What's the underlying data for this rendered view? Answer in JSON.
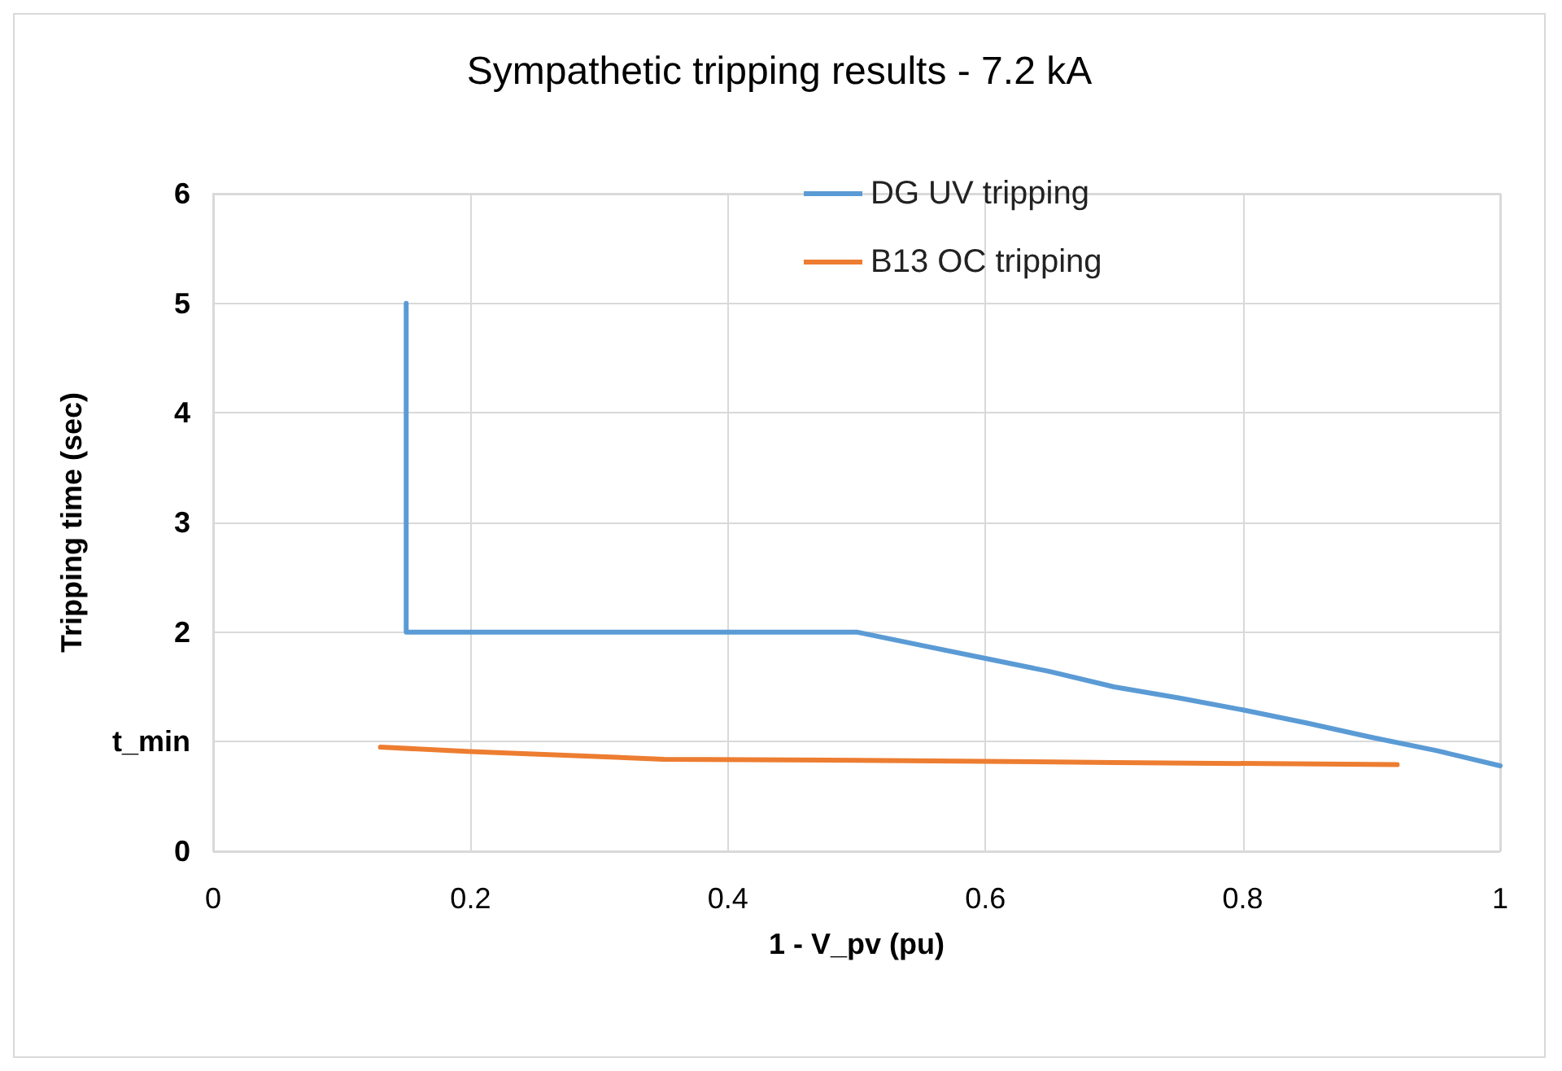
{
  "chart_data": {
    "type": "line",
    "title": "Sympathetic tripping results - 7.2 kA",
    "xlabel": "1 - V_pv (pu)",
    "ylabel": "Tripping time (sec)",
    "xlim": [
      0,
      1
    ],
    "xticks": [
      0,
      0.2,
      0.4,
      0.6,
      0.8,
      1
    ],
    "ylim": [
      0,
      6
    ],
    "yticks": [
      0,
      {
        "value": 1,
        "label": "t_min"
      },
      2,
      3,
      4,
      5,
      6
    ],
    "grid": true,
    "legend": "top",
    "marker": "none",
    "line_style": "solid",
    "series": [
      {
        "name": "DG UV tripping",
        "color": "#5b9bd5",
        "x": [
          0.15,
          0.15,
          0.5,
          0.55,
          0.6,
          0.65,
          0.7,
          0.75,
          0.8,
          0.85,
          0.9,
          0.95,
          1
        ],
        "values": [
          5,
          2,
          2,
          1.88,
          1.76,
          1.64,
          1.5,
          1.4,
          1.29,
          1.17,
          1.04,
          0.92,
          0.78
        ]
      },
      {
        "name": "B13 OC tripping",
        "color": "#ed7d31",
        "x": [
          0.13,
          0.2,
          0.35,
          0.5,
          0.7,
          0.92
        ],
        "values": [
          0.95,
          0.91,
          0.84,
          0.83,
          0.81,
          0.79
        ]
      }
    ]
  }
}
